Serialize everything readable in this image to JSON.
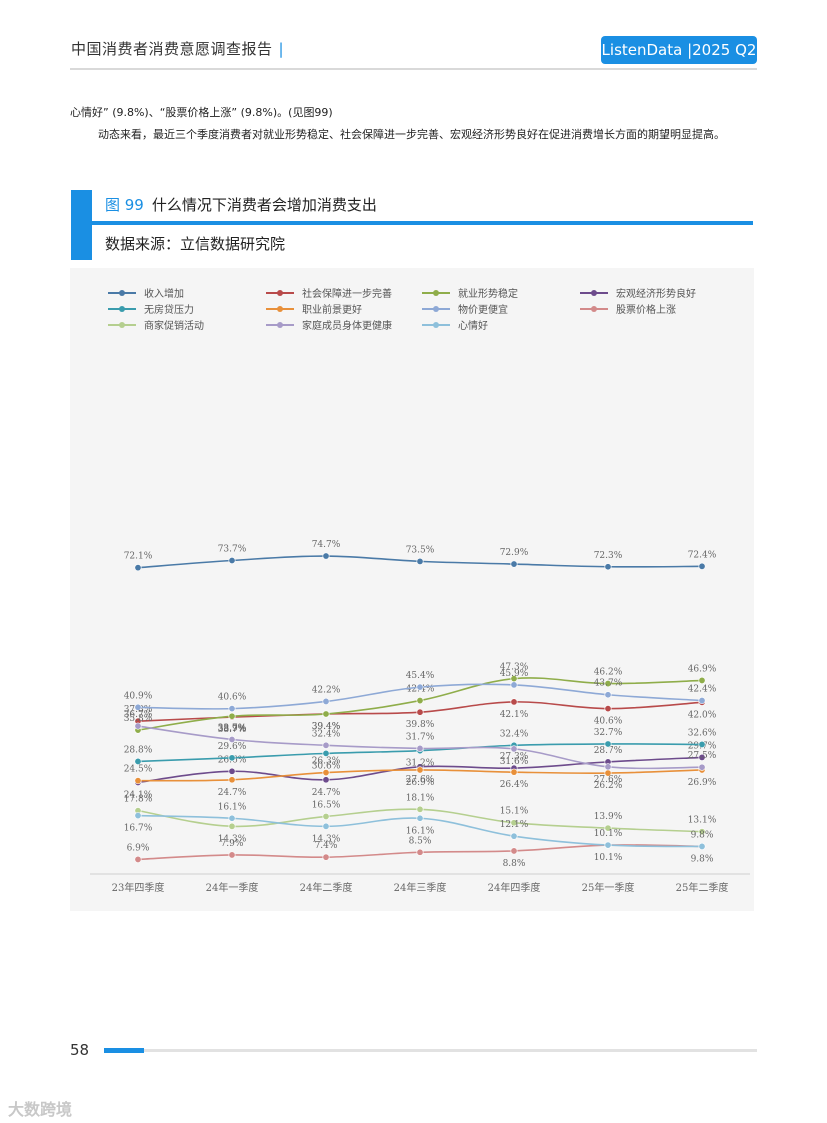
{
  "header": {
    "title": "中国消费者消费意愿调查报告",
    "divider": "|",
    "badge": "ListenData |2025 Q2"
  },
  "body": {
    "p1": "心情好” (9.8%)、“股票价格上涨” (9.8%)。(见图99)",
    "p2": "动态来看，最近三个季度消费者对就业形势稳定、社会保障进一步完善、宏观经济形势良好在促进消费增长方面的期望明显提高。"
  },
  "figure": {
    "number": "图 99",
    "title": "什么情况下消费者会增加消费支出",
    "source": "数据来源：立信数据研究院"
  },
  "chart_data": {
    "type": "line",
    "title": "",
    "xlabel": "",
    "ylabel": "",
    "categories": [
      "23年四季度",
      "24年一季度",
      "24年二季度",
      "24年三季度",
      "24年四季度",
      "25年一季度",
      "25年二季度"
    ],
    "legend_position": "top",
    "grid": false,
    "series": [
      {
        "name": "收入增加",
        "color": "#4a7aa7",
        "values": [
          72.1,
          73.7,
          74.7,
          73.5,
          72.9,
          72.3,
          72.4
        ]
      },
      {
        "name": "社会保障进一步完善",
        "color": "#b84a4a",
        "values": [
          37.8,
          38.7,
          39.4,
          39.8,
          42.1,
          40.6,
          42.0
        ]
      },
      {
        "name": "就业形势稳定",
        "color": "#8fad4a",
        "values": [
          35.8,
          38.9,
          39.4,
          42.4,
          47.3,
          46.2,
          46.9
        ]
      },
      {
        "name": "宏观经济形势良好",
        "color": "#6d4b8c",
        "values": [
          24.1,
          26.6,
          24.7,
          27.6,
          27.3,
          28.7,
          29.7
        ]
      },
      {
        "name": "无房贷压力",
        "color": "#3a9cad",
        "values": [
          28.8,
          29.6,
          30.6,
          31.2,
          32.4,
          32.7,
          32.6
        ]
      },
      {
        "name": "职业前景更好",
        "color": "#e8903a",
        "values": [
          24.5,
          24.7,
          26.3,
          26.9,
          26.4,
          26.2,
          26.9
        ]
      },
      {
        "name": "物价更便宜",
        "color": "#8ea9d6",
        "values": [
          40.9,
          40.6,
          42.2,
          45.4,
          45.9,
          43.7,
          42.4
        ]
      },
      {
        "name": "股票价格上涨",
        "color": "#d38a8a",
        "values": [
          6.9,
          7.9,
          7.4,
          8.5,
          8.8,
          10.1,
          9.8
        ]
      },
      {
        "name": "商家促销活动",
        "color": "#b5cf8f",
        "values": [
          17.8,
          14.3,
          16.5,
          18.1,
          15.1,
          13.9,
          13.1
        ]
      },
      {
        "name": "家庭成员身体更健康",
        "color": "#a79bc8",
        "values": [
          36.7,
          33.7,
          32.4,
          31.7,
          31.6,
          27.6,
          27.5
        ]
      },
      {
        "name": "心情好",
        "color": "#8ec0db",
        "values": [
          16.7,
          16.1,
          14.3,
          16.1,
          12.1,
          10.1,
          9.8
        ]
      }
    ],
    "data_label_suffix": "%"
  },
  "footer": {
    "page_number": "58",
    "watermark": "大数跨境"
  }
}
